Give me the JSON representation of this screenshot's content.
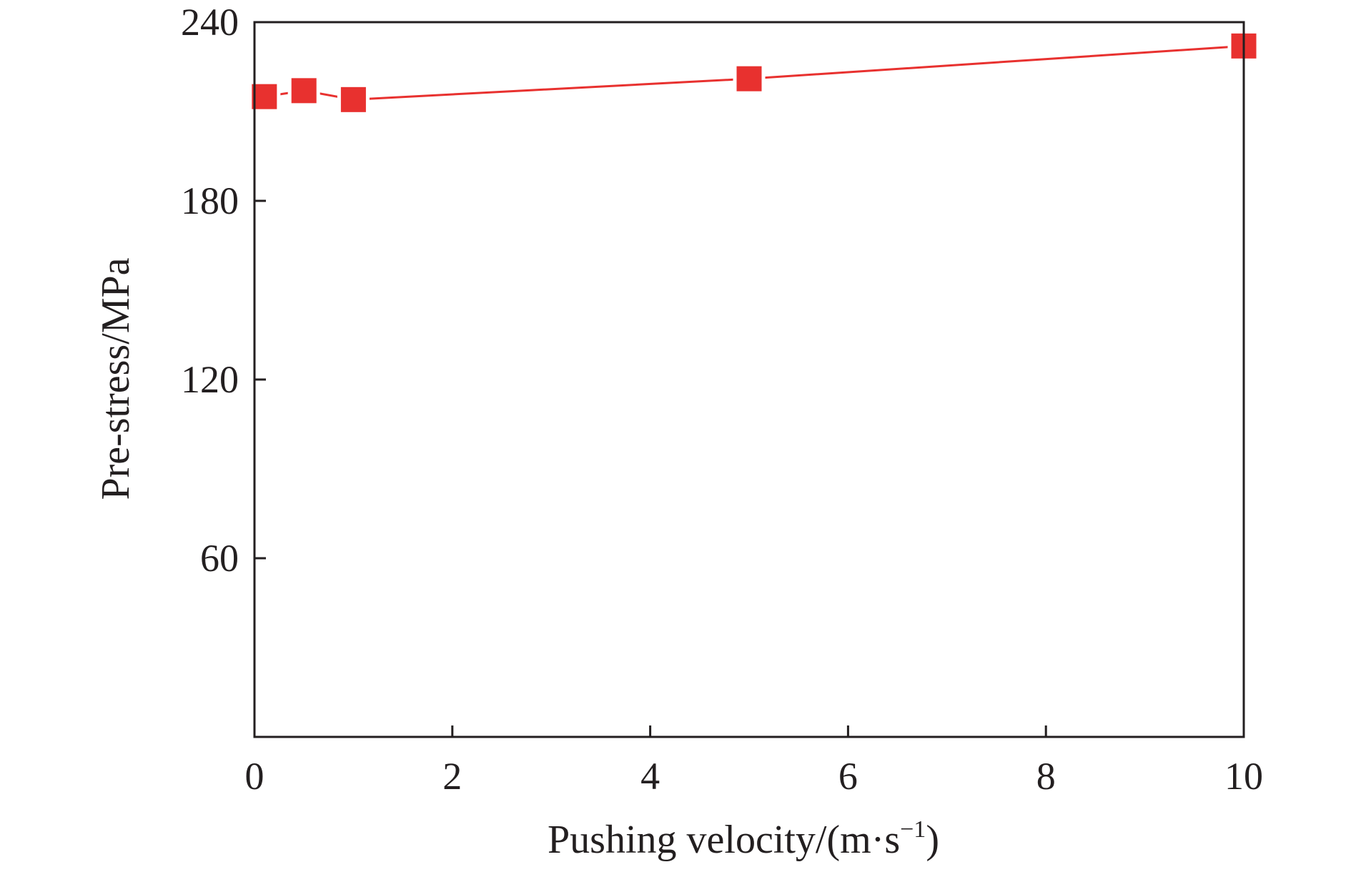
{
  "chart_data": {
    "type": "line",
    "title": "",
    "xlabel": "Pushing velocity/(m·s",
    "xlabel_superscript": "−1",
    "xlabel_suffix": ")",
    "ylabel": "Pre-stress/MPa",
    "xlim": [
      0,
      10
    ],
    "ylim": [
      0,
      240
    ],
    "xticks": [
      0,
      2,
      4,
      6,
      8,
      10
    ],
    "xtick_labels": [
      "0",
      "2",
      "4",
      "6",
      "8",
      "10"
    ],
    "yticks": [
      60,
      120,
      180,
      240
    ],
    "ytick_labels": [
      "60",
      "120",
      "180",
      "240"
    ],
    "grid": false,
    "legend": "none",
    "series": [
      {
        "color": "#e8312f",
        "marker": "square",
        "x": [
          0.1,
          0.5,
          1.0,
          5.0,
          10.0
        ],
        "y": [
          215,
          217,
          214,
          221,
          232
        ]
      }
    ]
  }
}
